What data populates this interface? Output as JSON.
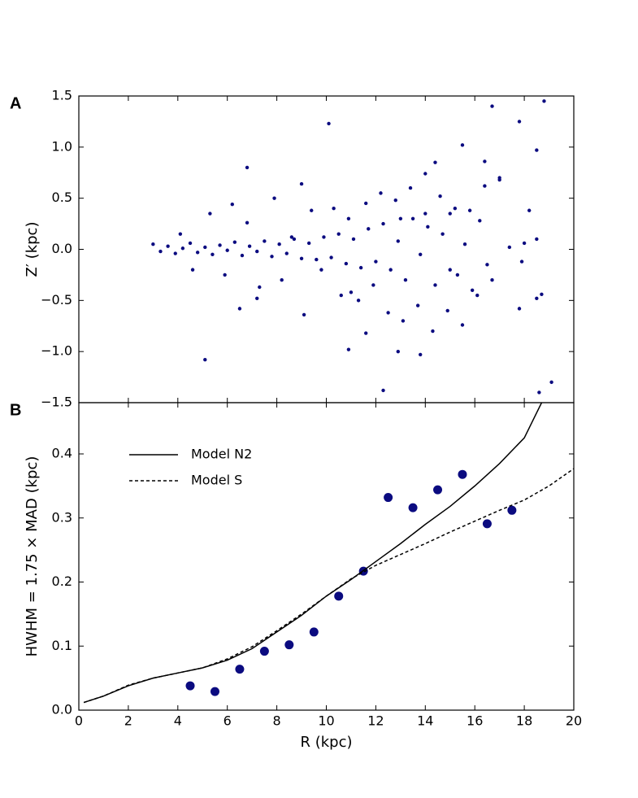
{
  "chart_data": [
    {
      "type": "scatter",
      "panel_label": "A",
      "ylabel": "Z′ (kpc)",
      "xlim": [
        0,
        20
      ],
      "xticks": [
        0,
        2,
        4,
        6,
        8,
        10,
        12,
        14,
        16,
        18,
        20
      ],
      "ylim": [
        -1.5,
        1.5
      ],
      "yticks": [
        {
          "value": -1.5,
          "label": "−1.5"
        },
        {
          "value": -1.0,
          "label": "−1.0"
        },
        {
          "value": -0.5,
          "label": "−0.5"
        },
        {
          "value": 0.0,
          "label": "0.0"
        },
        0.5,
        {
          "value": 1.0,
          "label": "1.0"
        },
        1.5
      ],
      "series": [
        {
          "color": "#0b0b80",
          "x": [
            3.0,
            3.3,
            3.6,
            3.9,
            4.2,
            4.5,
            4.8,
            5.1,
            5.4,
            5.7,
            6.0,
            6.3,
            6.6,
            6.9,
            7.2,
            7.5,
            7.8,
            8.1,
            8.4,
            8.7,
            9.0,
            9.3,
            9.6,
            9.9,
            10.2,
            10.5,
            10.8,
            11.1,
            11.4,
            11.7,
            12.0,
            12.3,
            12.6,
            12.9,
            13.2,
            13.5,
            13.8,
            14.1,
            14.4,
            14.7,
            15.0,
            15.3,
            15.6,
            15.9,
            16.2,
            16.5,
            4.1,
            4.6,
            5.3,
            5.9,
            6.2,
            6.5,
            6.8,
            7.3,
            7.9,
            8.2,
            8.6,
            9.1,
            9.4,
            9.8,
            10.3,
            10.6,
            10.9,
            11.3,
            11.6,
            11.9,
            12.2,
            12.5,
            12.8,
            13.1,
            13.4,
            13.7,
            14.0,
            14.3,
            14.6,
            14.9,
            15.2,
            15.5,
            15.8,
            16.1,
            16.4,
            16.7,
            17.0,
            17.4,
            17.8,
            18.2,
            18.5,
            18.7,
            9.0,
            11.0,
            13.0,
            15.0,
            10.1,
            16.7,
            17.8,
            18.8,
            18.5,
            6.8,
            5.1,
            12.3,
            18.6,
            19.1,
            15.5,
            14.4,
            16.4,
            12.9,
            13.8,
            10.9,
            11.6,
            14.0,
            17.0,
            18.5,
            7.2,
            17.9,
            18.0
          ],
          "values": [
            0.05,
            -0.02,
            0.03,
            -0.04,
            0.01,
            0.06,
            -0.03,
            0.02,
            -0.05,
            0.04,
            -0.01,
            0.07,
            -0.06,
            0.03,
            -0.02,
            0.08,
            -0.07,
            0.05,
            -0.04,
            0.1,
            -0.09,
            0.06,
            -0.1,
            0.12,
            -0.08,
            0.15,
            -0.14,
            0.1,
            -0.18,
            0.2,
            -0.12,
            0.25,
            -0.2,
            0.08,
            -0.3,
            0.3,
            -0.05,
            0.22,
            -0.35,
            0.15,
            0.35,
            -0.25,
            0.05,
            -0.4,
            0.28,
            -0.15,
            0.15,
            -0.2,
            0.35,
            -0.25,
            0.44,
            -0.58,
            0.26,
            -0.37,
            0.5,
            -0.3,
            0.12,
            -0.64,
            0.38,
            -0.2,
            0.4,
            -0.45,
            0.3,
            -0.5,
            0.45,
            -0.35,
            0.55,
            -0.62,
            0.48,
            -0.7,
            0.6,
            -0.55,
            0.35,
            -0.8,
            0.52,
            -0.6,
            0.4,
            -0.74,
            0.38,
            -0.45,
            0.62,
            -0.3,
            0.7,
            0.02,
            -0.58,
            0.38,
            -0.48,
            -0.44,
            0.64,
            -0.42,
            0.3,
            -0.2,
            1.23,
            1.4,
            1.25,
            1.45,
            0.97,
            0.8,
            -1.08,
            -1.38,
            -1.4,
            -1.3,
            1.02,
            0.85,
            0.86,
            -1.0,
            -1.03,
            -0.98,
            -0.82,
            0.74,
            0.68,
            0.1,
            -0.48,
            -0.12,
            0.06
          ]
        }
      ]
    },
    {
      "type": "line",
      "panel_label": "B",
      "xlabel": "R (kpc)",
      "ylabel": "HWHM = 1.75 × MAD (kpc)",
      "xlim": [
        0,
        20
      ],
      "xticks": [
        0,
        2,
        4,
        6,
        8,
        10,
        12,
        14,
        16,
        18,
        20
      ],
      "ylim": [
        0,
        0.48
      ],
      "yticks": [
        {
          "value": 0.0,
          "label": "0.0"
        },
        0.1,
        0.2,
        0.3,
        0.4
      ],
      "legend": "upper left",
      "series": [
        {
          "style": "markers",
          "color": "#0b0b80",
          "x": [
            4.5,
            5.5,
            6.5,
            7.5,
            8.5,
            9.5,
            10.5,
            11.5,
            12.5,
            13.5,
            14.5,
            15.5,
            16.5,
            17.5
          ],
          "values": [
            0.038,
            0.029,
            0.064,
            0.092,
            0.102,
            0.122,
            0.178,
            0.217,
            0.332,
            0.316,
            0.344,
            0.368,
            0.291,
            0.312
          ]
        },
        {
          "name": "Model N2",
          "style": "solid",
          "color": "#000000",
          "x": [
            0.2,
            1,
            2,
            3,
            4,
            5,
            6,
            7,
            8,
            9,
            10,
            11,
            12,
            13,
            14,
            15,
            16,
            17,
            18,
            18.7
          ],
          "values": [
            0.012,
            0.022,
            0.038,
            0.05,
            0.058,
            0.066,
            0.078,
            0.096,
            0.122,
            0.148,
            0.178,
            0.204,
            0.232,
            0.26,
            0.29,
            0.318,
            0.35,
            0.385,
            0.425,
            0.48
          ]
        },
        {
          "name": "Model S",
          "style": "dashed",
          "color": "#000000",
          "x": [
            0.2,
            1,
            2,
            3,
            4,
            5,
            6,
            7,
            8,
            9,
            10,
            11,
            12,
            13,
            14,
            15,
            16,
            17,
            18,
            19,
            20
          ],
          "values": [
            0.012,
            0.022,
            0.039,
            0.05,
            0.058,
            0.066,
            0.08,
            0.099,
            0.124,
            0.15,
            0.178,
            0.205,
            0.226,
            0.243,
            0.26,
            0.278,
            0.295,
            0.312,
            0.328,
            0.35,
            0.377
          ]
        }
      ]
    }
  ]
}
